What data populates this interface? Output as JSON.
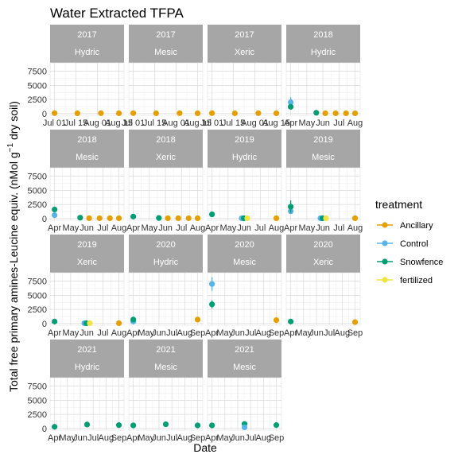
{
  "chart_data": {
    "type": "scatter",
    "title": "Water Extracted TFPA",
    "xlabel": "Date",
    "ylabel": "Total free primary amines-Leucine equiv. (nMol g-1 dry soil)",
    "ylabel_parts": {
      "main": "Total free primary amines-Leucine equiv. (nMol g",
      "sup": "−1",
      "tail": " dry soil)"
    },
    "y_ticks": [
      "0",
      "2500",
      "5000",
      "7500"
    ],
    "y_tick_values": [
      0,
      2500,
      5000,
      7500
    ],
    "ylim": [
      -300,
      9000
    ],
    "grid": true,
    "legend": {
      "title": "treatment",
      "placement": "right",
      "items": [
        {
          "name": "Ancillary",
          "color": "#E69F00"
        },
        {
          "name": "Control",
          "color": "#56B4E9"
        },
        {
          "name": "Snowfence",
          "color": "#009E73"
        },
        {
          "name": "fertilized",
          "color": "#F0E442"
        }
      ]
    },
    "panels": [
      {
        "strip_top": "2017",
        "strip_bottom": "Hydric",
        "x_ticks": [
          "Jul 01",
          "Jul 15",
          "Aug 01",
          "Aug 15"
        ],
        "xlim": [
          0,
          10
        ],
        "points": [
          {
            "t": "Ancillary",
            "x": 0.3,
            "y": 80,
            "err": 0
          },
          {
            "t": "Ancillary",
            "x": 3.6,
            "y": 60,
            "err": 0
          },
          {
            "t": "Ancillary",
            "x": 7.0,
            "y": 80,
            "err": 0
          },
          {
            "t": "Ancillary",
            "x": 9.6,
            "y": 60,
            "err": 0
          }
        ]
      },
      {
        "strip_top": "2017",
        "strip_bottom": "Mesic",
        "x_ticks": [
          "Jul 01",
          "Jul 15",
          "Aug 01",
          "Aug 15"
        ],
        "xlim": [
          0,
          10
        ],
        "points": [
          {
            "t": "Ancillary",
            "x": 0.3,
            "y": 80,
            "err": 0
          },
          {
            "t": "Ancillary",
            "x": 3.6,
            "y": 60,
            "err": 0
          },
          {
            "t": "Ancillary",
            "x": 7.0,
            "y": 80,
            "err": 0
          },
          {
            "t": "Ancillary",
            "x": 9.6,
            "y": 60,
            "err": 0
          }
        ]
      },
      {
        "strip_top": "2017",
        "strip_bottom": "Xeric",
        "x_ticks": [
          "Jul 01",
          "Jul 15",
          "Aug 01",
          "Aug 15"
        ],
        "xlim": [
          0,
          10
        ],
        "points": [
          {
            "t": "Ancillary",
            "x": 0.3,
            "y": 80,
            "err": 0
          },
          {
            "t": "Ancillary",
            "x": 3.6,
            "y": 60,
            "err": 0
          },
          {
            "t": "Ancillary",
            "x": 7.0,
            "y": 80,
            "err": 0
          },
          {
            "t": "Ancillary",
            "x": 9.6,
            "y": 60,
            "err": 0
          }
        ]
      },
      {
        "strip_top": "2018",
        "strip_bottom": "Hydric",
        "x_ticks": [
          "Apr",
          "May",
          "Jun",
          "Jul",
          "Aug"
        ],
        "xlim": [
          0,
          10
        ],
        "points": [
          {
            "t": "Control",
            "x": 0.3,
            "y": 2000,
            "err": 900
          },
          {
            "t": "Snowfence",
            "x": 0.3,
            "y": 1200,
            "err": 400
          },
          {
            "t": "Snowfence",
            "x": 4.0,
            "y": 150,
            "err": 0
          },
          {
            "t": "Ancillary",
            "x": 5.3,
            "y": 60,
            "err": 0
          },
          {
            "t": "Ancillary",
            "x": 6.8,
            "y": 60,
            "err": 0
          },
          {
            "t": "Ancillary",
            "x": 8.3,
            "y": 60,
            "err": 0
          },
          {
            "t": "Ancillary",
            "x": 9.6,
            "y": 60,
            "err": 0
          }
        ]
      },
      {
        "strip_top": "2018",
        "strip_bottom": "Mesic",
        "x_ticks": [
          "Apr",
          "May",
          "Jun",
          "Jul",
          "Aug"
        ],
        "xlim": [
          0,
          10
        ],
        "points": [
          {
            "t": "Control",
            "x": 0.3,
            "y": 600,
            "err": 250
          },
          {
            "t": "Snowfence",
            "x": 0.3,
            "y": 1600,
            "err": 350
          },
          {
            "t": "Snowfence",
            "x": 4.0,
            "y": 150,
            "err": 0
          },
          {
            "t": "Ancillary",
            "x": 5.3,
            "y": 60,
            "err": 0
          },
          {
            "t": "Ancillary",
            "x": 6.8,
            "y": 60,
            "err": 0
          },
          {
            "t": "Ancillary",
            "x": 8.3,
            "y": 60,
            "err": 0
          },
          {
            "t": "Ancillary",
            "x": 9.6,
            "y": 60,
            "err": 0
          }
        ]
      },
      {
        "strip_top": "2018",
        "strip_bottom": "Xeric",
        "x_ticks": [
          "Apr",
          "May",
          "Jun",
          "Jul",
          "Aug"
        ],
        "xlim": [
          0,
          10
        ],
        "points": [
          {
            "t": "Snowfence",
            "x": 0.3,
            "y": 350,
            "err": 0
          },
          {
            "t": "Snowfence",
            "x": 4.0,
            "y": 100,
            "err": 0
          },
          {
            "t": "Ancillary",
            "x": 5.3,
            "y": 60,
            "err": 0
          },
          {
            "t": "Ancillary",
            "x": 6.8,
            "y": 60,
            "err": 0
          },
          {
            "t": "Ancillary",
            "x": 8.3,
            "y": 60,
            "err": 0
          },
          {
            "t": "Ancillary",
            "x": 9.6,
            "y": 60,
            "err": 0
          }
        ]
      },
      {
        "strip_top": "2019",
        "strip_bottom": "Hydric",
        "x_ticks": [
          "Apr",
          "May",
          "Jun",
          "Jul",
          "Aug"
        ],
        "xlim": [
          0,
          10
        ],
        "points": [
          {
            "t": "Snowfence",
            "x": 0.3,
            "y": 750,
            "err": 0
          },
          {
            "t": "Control",
            "x": 4.6,
            "y": 50,
            "err": 0
          },
          {
            "t": "Snowfence",
            "x": 4.9,
            "y": 50,
            "err": 0
          },
          {
            "t": "fertilized",
            "x": 5.4,
            "y": 60,
            "err": 0
          },
          {
            "t": "Ancillary",
            "x": 9.6,
            "y": 60,
            "err": 0
          }
        ]
      },
      {
        "strip_top": "2019",
        "strip_bottom": "Mesic",
        "x_ticks": [
          "Apr",
          "May",
          "Jun",
          "Jul",
          "Aug"
        ],
        "xlim": [
          0,
          10
        ],
        "points": [
          {
            "t": "Control",
            "x": 0.3,
            "y": 1300,
            "err": 400
          },
          {
            "t": "Snowfence",
            "x": 0.3,
            "y": 2100,
            "err": 1100
          },
          {
            "t": "Control",
            "x": 4.6,
            "y": 50,
            "err": 0
          },
          {
            "t": "Snowfence",
            "x": 4.9,
            "y": 50,
            "err": 0
          },
          {
            "t": "fertilized",
            "x": 5.4,
            "y": 60,
            "err": 0
          },
          {
            "t": "Ancillary",
            "x": 9.6,
            "y": 60,
            "err": 0
          }
        ]
      },
      {
        "strip_top": "2019",
        "strip_bottom": "Xeric",
        "x_ticks": [
          "Apr",
          "May",
          "Jun",
          "Jul",
          "Aug"
        ],
        "xlim": [
          0,
          10
        ],
        "points": [
          {
            "t": "Snowfence",
            "x": 0.3,
            "y": 350,
            "err": 0
          },
          {
            "t": "Control",
            "x": 4.6,
            "y": 50,
            "err": 0
          },
          {
            "t": "Snowfence",
            "x": 4.9,
            "y": 50,
            "err": 0
          },
          {
            "t": "fertilized",
            "x": 5.4,
            "y": 60,
            "err": 0
          },
          {
            "t": "Ancillary",
            "x": 9.6,
            "y": 60,
            "err": 0
          }
        ]
      },
      {
        "strip_top": "2020",
        "strip_bottom": "Hydric",
        "x_ticks": [
          "Apr",
          "May",
          "Jun",
          "Jul",
          "Aug",
          "Sep"
        ],
        "xlim": [
          0,
          10
        ],
        "points": [
          {
            "t": "Control",
            "x": 0.3,
            "y": 350,
            "err": 0
          },
          {
            "t": "Snowfence",
            "x": 0.3,
            "y": 700,
            "err": 0
          },
          {
            "t": "Ancillary",
            "x": 9.6,
            "y": 700,
            "err": 0
          }
        ]
      },
      {
        "strip_top": "2020",
        "strip_bottom": "Mesic",
        "x_ticks": [
          "Apr",
          "May",
          "Jun",
          "Jul",
          "Aug",
          "Sep"
        ],
        "xlim": [
          0,
          10
        ],
        "points": [
          {
            "t": "Control",
            "x": 0.3,
            "y": 7000,
            "err": 1200
          },
          {
            "t": "Snowfence",
            "x": 0.3,
            "y": 3400,
            "err": 700
          },
          {
            "t": "Ancillary",
            "x": 9.6,
            "y": 600,
            "err": 0
          }
        ]
      },
      {
        "strip_top": "2020",
        "strip_bottom": "Xeric",
        "x_ticks": [
          "Apr",
          "May",
          "Jun",
          "Jul",
          "Aug",
          "Sep"
        ],
        "xlim": [
          0,
          10
        ],
        "points": [
          {
            "t": "Snowfence",
            "x": 0.3,
            "y": 350,
            "err": 0
          },
          {
            "t": "Ancillary",
            "x": 9.6,
            "y": 250,
            "err": 0
          }
        ]
      },
      {
        "strip_top": "2021",
        "strip_bottom": "Hydric",
        "x_ticks": [
          "Apr",
          "May",
          "Jun",
          "Jul",
          "Aug",
          "Sep"
        ],
        "xlim": [
          0,
          10
        ],
        "points": [
          {
            "t": "Snowfence",
            "x": 0.3,
            "y": 300,
            "err": 300
          },
          {
            "t": "Snowfence",
            "x": 5.0,
            "y": 700,
            "err": 200
          },
          {
            "t": "Snowfence",
            "x": 9.6,
            "y": 600,
            "err": 300
          }
        ]
      },
      {
        "strip_top": "2021",
        "strip_bottom": "Mesic",
        "x_ticks": [
          "Apr",
          "May",
          "Jun",
          "Jul",
          "Aug",
          "Sep"
        ],
        "xlim": [
          0,
          10
        ],
        "points": [
          {
            "t": "Snowfence",
            "x": 0.3,
            "y": 550,
            "err": 150
          },
          {
            "t": "Snowfence",
            "x": 5.0,
            "y": 750,
            "err": 300
          },
          {
            "t": "Snowfence",
            "x": 9.6,
            "y": 550,
            "err": 100
          }
        ]
      },
      {
        "strip_top": "2021",
        "strip_bottom": "Mesic",
        "x_ticks": [
          "Apr",
          "May",
          "Jun",
          "Jul",
          "Aug",
          "Sep"
        ],
        "xlim": [
          0,
          10
        ],
        "points": [
          {
            "t": "Snowfence",
            "x": 0.3,
            "y": 550,
            "err": 150
          },
          {
            "t": "Snowfence",
            "x": 5.0,
            "y": 800,
            "err": 300
          },
          {
            "t": "Control",
            "x": 5.0,
            "y": 200,
            "err": 0
          },
          {
            "t": "Snowfence",
            "x": 9.6,
            "y": 600,
            "err": 300
          }
        ]
      }
    ]
  }
}
